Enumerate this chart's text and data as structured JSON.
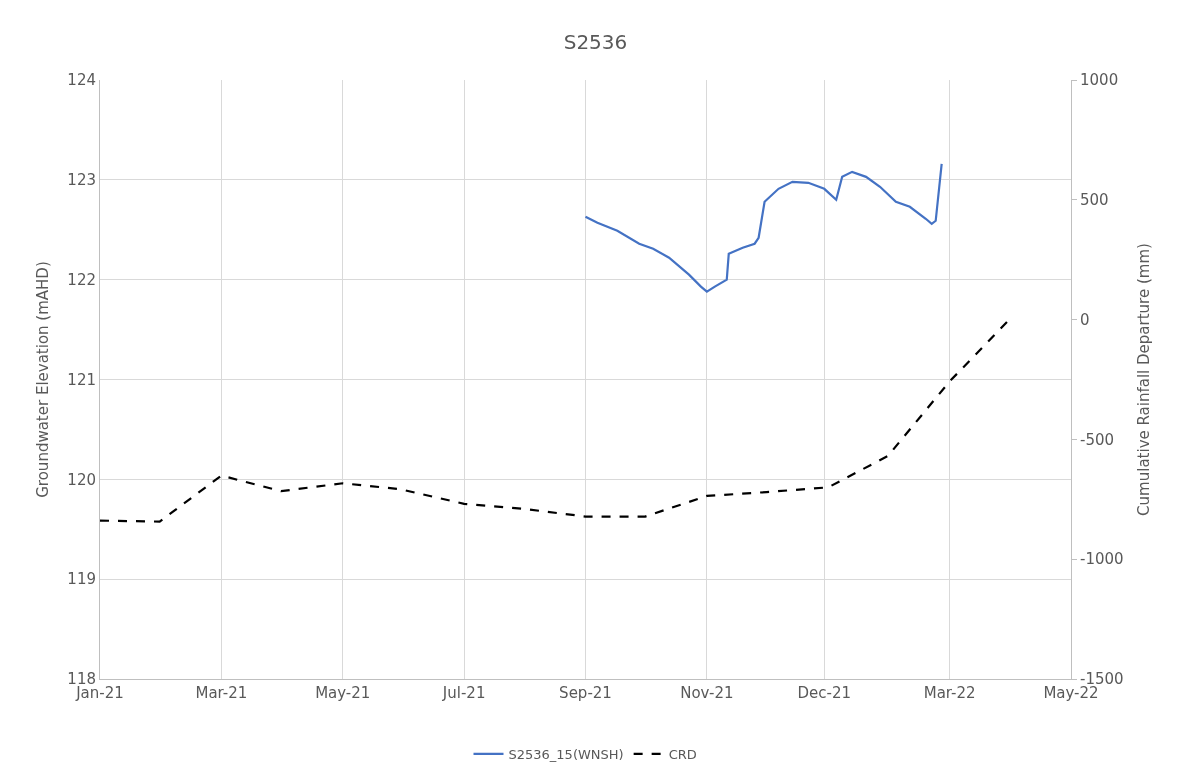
{
  "chart_data": {
    "type": "line",
    "title": "S2536",
    "ylabel": "Groundwater Elevation (mAHD)",
    "y2label": "Cumulative Rainfall Departure (mm)",
    "xlim": [
      "2021-01-01",
      "2022-05-04"
    ],
    "xticks": [
      {
        "value": "2021-01-01",
        "label": "Jan-21"
      },
      {
        "value": "2021-03-03",
        "label": "Mar-21"
      },
      {
        "value": "2021-05-03",
        "label": "May-21"
      },
      {
        "value": "2021-07-03",
        "label": "Jul-21"
      },
      {
        "value": "2021-09-02",
        "label": "Sep-21"
      },
      {
        "value": "2021-11-02",
        "label": "Nov-21"
      },
      {
        "value": "2021-12-31",
        "label": "Dec-21"
      },
      {
        "value": "2022-03-04",
        "label": "Mar-22"
      },
      {
        "value": "2022-05-04",
        "label": "May-22"
      }
    ],
    "ylim": [
      118,
      124
    ],
    "yticks": [
      118,
      119,
      120,
      121,
      122,
      123,
      124
    ],
    "y2lim": [
      -1500,
      1000
    ],
    "y2ticks": [
      -1500,
      -1000,
      -500,
      0,
      500,
      1000
    ],
    "grid": true,
    "legend": "bottom",
    "marker": "none",
    "series": [
      {
        "name": "S2536_15(WNSH)",
        "color": "#4472c4",
        "line_style": "solid",
        "x": [
          "2021-09-02",
          "2021-09-08",
          "2021-09-18",
          "2021-09-29",
          "2021-10-06",
          "2021-10-14",
          "2021-10-24",
          "2021-10-30",
          "2021-11-02",
          "2021-11-06",
          "2021-11-12",
          "2021-11-13",
          "2021-11-20",
          "2021-11-26",
          "2021-11-28",
          "2021-12-01",
          "2021-12-08",
          "2021-12-15",
          "2021-12-23",
          "2021-12-31",
          "2022-01-06",
          "2022-01-09",
          "2022-01-14",
          "2022-01-21",
          "2022-01-28",
          "2022-02-05",
          "2022-02-12",
          "2022-02-20",
          "2022-02-23",
          "2022-02-25",
          "2022-02-28"
        ],
        "values": [
          122.63,
          122.57,
          122.49,
          122.36,
          122.31,
          122.22,
          122.05,
          121.93,
          121.88,
          121.93,
          122.0,
          122.26,
          122.32,
          122.36,
          122.42,
          122.78,
          122.91,
          122.98,
          122.97,
          122.91,
          122.8,
          123.03,
          123.08,
          123.03,
          122.93,
          122.78,
          122.73,
          122.61,
          122.56,
          122.59,
          123.16
        ]
      },
      {
        "name": "CRD",
        "color": "#000000",
        "line_style": "dashed",
        "axis": "y2",
        "x": [
          "2021-01-01",
          "2021-01-31",
          "2021-03-03",
          "2021-04-02",
          "2021-05-03",
          "2021-06-01",
          "2021-07-03",
          "2021-08-02",
          "2021-09-02",
          "2021-10-02",
          "2021-11-02",
          "2021-12-02",
          "2022-01-02",
          "2022-02-01",
          "2022-03-04",
          "2022-04-03"
        ],
        "values": [
          -839,
          -843,
          -651,
          -716,
          -683,
          -708,
          -769,
          -790,
          -822,
          -822,
          -736,
          -720,
          -700,
          -569,
          -258,
          0
        ]
      }
    ]
  }
}
